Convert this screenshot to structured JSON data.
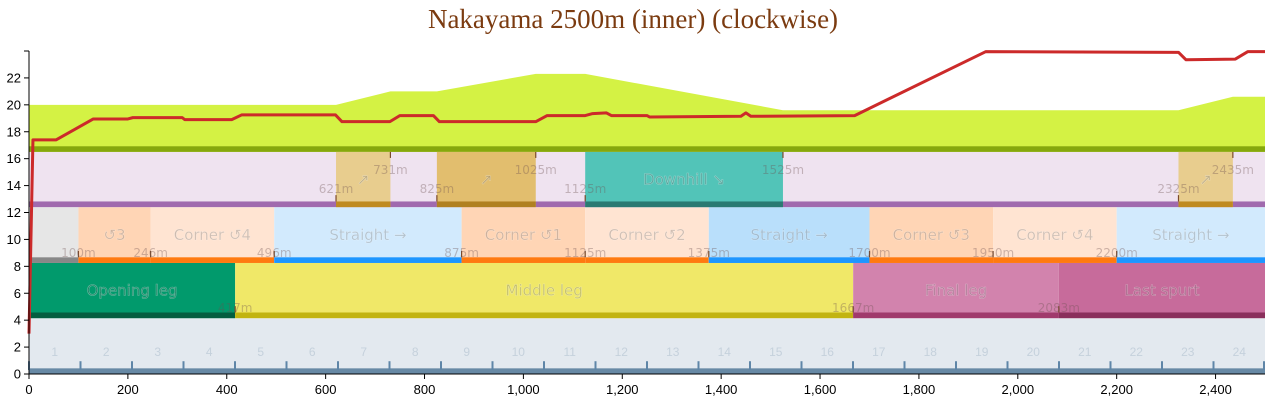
{
  "chart_data": {
    "type": "line",
    "title": "Nakayama 2500m (inner) (clockwise)",
    "xlim": [
      0,
      2500
    ],
    "ylim": [
      0,
      24
    ],
    "x_ticks": [
      "0",
      "200",
      "400",
      "600",
      "800",
      "1,000",
      "1,200",
      "1,400",
      "1,600",
      "1,800",
      "2,000",
      "2,200",
      "2,400"
    ],
    "y_ticks": [
      "0",
      "2",
      "4",
      "6",
      "8",
      "10",
      "12",
      "14",
      "16",
      "18",
      "20",
      "22"
    ],
    "colors": {
      "speed_line": "#cc2a2a",
      "elevation": "#d4f244",
      "elevation_base": "#86a80c"
    },
    "speed_line": [
      [
        0,
        3
      ],
      [
        8,
        17.4
      ],
      [
        55,
        17.4
      ],
      [
        130,
        18.95
      ],
      [
        200,
        18.95
      ],
      [
        210,
        19.05
      ],
      [
        310,
        19.05
      ],
      [
        315,
        18.9
      ],
      [
        410,
        18.9
      ],
      [
        430,
        19.25
      ],
      [
        620,
        19.25
      ],
      [
        633,
        18.75
      ],
      [
        730,
        18.75
      ],
      [
        750,
        19.2
      ],
      [
        818,
        19.2
      ],
      [
        830,
        18.75
      ],
      [
        1025,
        18.75
      ],
      [
        1048,
        19.2
      ],
      [
        1125,
        19.2
      ],
      [
        1140,
        19.35
      ],
      [
        1168,
        19.4
      ],
      [
        1178,
        19.2
      ],
      [
        1250,
        19.2
      ],
      [
        1255,
        19.1
      ],
      [
        1440,
        19.15
      ],
      [
        1450,
        19.4
      ],
      [
        1460,
        19.15
      ],
      [
        1670,
        19.2
      ],
      [
        1935,
        23.95
      ],
      [
        2325,
        23.9
      ],
      [
        2340,
        23.35
      ],
      [
        2440,
        23.4
      ],
      [
        2465,
        23.95
      ],
      [
        2500,
        23.95
      ]
    ],
    "elevation_area": [
      [
        0,
        20
      ],
      [
        621,
        20
      ],
      [
        731,
        21
      ],
      [
        825,
        21
      ],
      [
        1025,
        22.3
      ],
      [
        1125,
        22.3
      ],
      [
        1525,
        19.6
      ],
      [
        2325,
        19.6
      ],
      [
        2435,
        20.6
      ],
      [
        2500,
        20.6
      ]
    ],
    "slopes": [
      {
        "start": 621,
        "end": 731,
        "label": "↗",
        "start_label": "621m",
        "end_label": "731m",
        "color": "#e8cd8e",
        "band": "#bf8a20"
      },
      {
        "start": 825,
        "end": 1025,
        "label": "↗",
        "start_label": "825m",
        "end_label": "1025m",
        "color": "#e2be6e",
        "band": "#b08020"
      },
      {
        "start": 1125,
        "end": 1525,
        "label": "Downhill ↘",
        "start_label": "1125m",
        "end_label": "1525m",
        "color": "#52c4b8",
        "band": "#2a7a72"
      },
      {
        "start": 2325,
        "end": 2435,
        "label": "↗",
        "start_label": "2325m",
        "end_label": "2435m",
        "color": "#e8cd8e",
        "band": "#bf8a20"
      }
    ],
    "corners": [
      {
        "start": 0,
        "end": 100,
        "label": "",
        "end_label": "",
        "color": "#e6e6e6",
        "band": "#888888"
      },
      {
        "start": 100,
        "end": 246,
        "label": "↺3",
        "start_label": "100m",
        "end_label": "246m",
        "color": "#ffd5b5",
        "band": "#ff7a10"
      },
      {
        "start": 246,
        "end": 496,
        "label": "Corner ↺4",
        "end_label": "496m",
        "color": "#ffe4d2",
        "band": "#ff7a10"
      },
      {
        "start": 496,
        "end": 875,
        "label": "Straight →",
        "end_label": "875m",
        "color": "#d2eafd",
        "band": "#1e96ff"
      },
      {
        "start": 875,
        "end": 1125,
        "label": "Corner ↺1",
        "end_label": "1125m",
        "color": "#ffd5b5",
        "band": "#ff7a10"
      },
      {
        "start": 1125,
        "end": 1375,
        "label": "Corner ↺2",
        "end_label": "1375m",
        "color": "#ffe4d2",
        "band": "#ff7a10"
      },
      {
        "start": 1375,
        "end": 1700,
        "label": "Straight →",
        "end_label": "1700m",
        "color": "#b9dffb",
        "band": "#1e96ff"
      },
      {
        "start": 1700,
        "end": 1950,
        "label": "Corner ↺3",
        "end_label": "1950m",
        "color": "#ffd5b5",
        "band": "#ff7a10"
      },
      {
        "start": 1950,
        "end": 2200,
        "label": "Corner ↺4",
        "end_label": "2200m",
        "color": "#ffe4d2",
        "band": "#ff7a10"
      },
      {
        "start": 2200,
        "end": 2500,
        "label": "Straight →",
        "end_label": "",
        "color": "#d2eafd",
        "band": "#1e96ff"
      }
    ],
    "phases": [
      {
        "start": 0,
        "end": 417,
        "label": "Opening leg",
        "end_label": "417m",
        "color": "#019a6c",
        "band": "#035e40"
      },
      {
        "start": 417,
        "end": 1667,
        "label": "Middle leg",
        "end_label": "1667m",
        "color": "#f0e868",
        "band": "#c2b410"
      },
      {
        "start": 1667,
        "end": 2083,
        "label": "Final leg",
        "end_label": "2083m",
        "color": "#d283ad",
        "band": "#a03a6c"
      },
      {
        "start": 2083,
        "end": 2500,
        "label": "Last spurt",
        "end_label": "",
        "color": "#c76b9b",
        "band": "#8a2f5c"
      }
    ],
    "sections": [
      "1",
      "2",
      "3",
      "4",
      "5",
      "6",
      "7",
      "8",
      "9",
      "10",
      "11",
      "12",
      "13",
      "14",
      "15",
      "16",
      "17",
      "18",
      "19",
      "20",
      "21",
      "22",
      "23",
      "24"
    ]
  }
}
